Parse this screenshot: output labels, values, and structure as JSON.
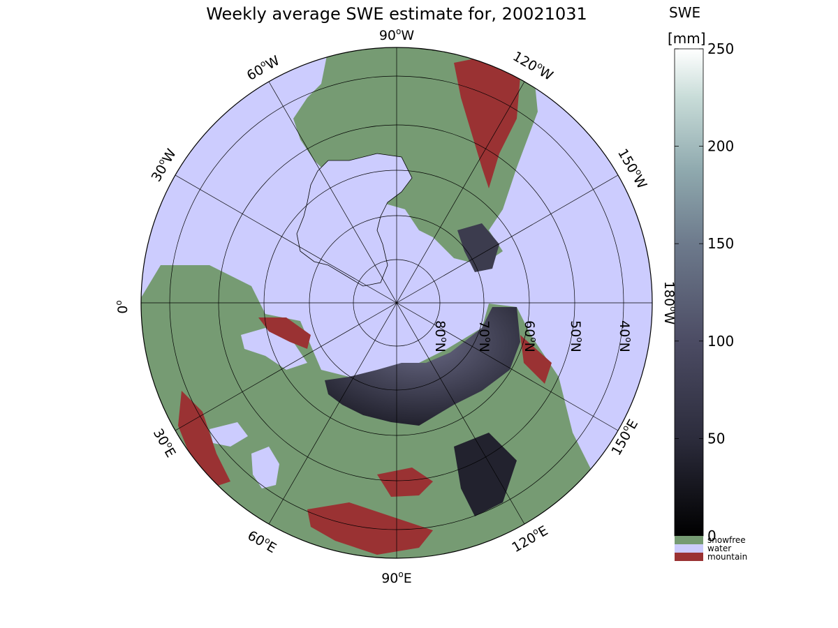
{
  "title": "Weekly average SWE estimate for, 20021031",
  "colorbar": {
    "title_line1": "SWE",
    "title_line2": "[mm]",
    "ticks": [
      "0",
      "50",
      "100",
      "150",
      "200",
      "250"
    ],
    "tick_values": [
      0,
      50,
      100,
      150,
      200,
      250
    ],
    "range": [
      0,
      250
    ],
    "gradient": [
      "#000000",
      "#2c2c3c",
      "#4c4c64",
      "#6d7a8c",
      "#8fa9ae",
      "#c8dcd8",
      "#ffffff"
    ],
    "categories": [
      {
        "label": "snowfree",
        "color": "#769b73"
      },
      {
        "label": "water",
        "color": "#ccccfe"
      },
      {
        "label": "mountain",
        "color": "#9a3233"
      }
    ]
  },
  "map": {
    "projection": "north polar stereographic",
    "ocean_color": "#ccccfe",
    "land_color": "#769b73",
    "snow_color": "#3c3c4e",
    "mountain_color": "#9a3233",
    "longitude_labels": [
      {
        "deg": "90",
        "suffix": "W"
      },
      {
        "deg": "120",
        "suffix": "W"
      },
      {
        "deg": "150",
        "suffix": "W"
      },
      {
        "deg": "180",
        "suffix": "W"
      },
      {
        "deg": "150",
        "suffix": "E"
      },
      {
        "deg": "120",
        "suffix": "E"
      },
      {
        "deg": "90",
        "suffix": "E"
      },
      {
        "deg": "60",
        "suffix": "E"
      },
      {
        "deg": "30",
        "suffix": "E"
      },
      {
        "deg": "0",
        "suffix": ""
      },
      {
        "deg": "30",
        "suffix": "W"
      },
      {
        "deg": "60",
        "suffix": "W"
      }
    ],
    "latitude_labels": [
      {
        "deg": "80",
        "suffix": "N"
      },
      {
        "deg": "70",
        "suffix": "N"
      },
      {
        "deg": "60",
        "suffix": "N"
      },
      {
        "deg": "50",
        "suffix": "N"
      },
      {
        "deg": "40",
        "suffix": "N"
      }
    ]
  }
}
